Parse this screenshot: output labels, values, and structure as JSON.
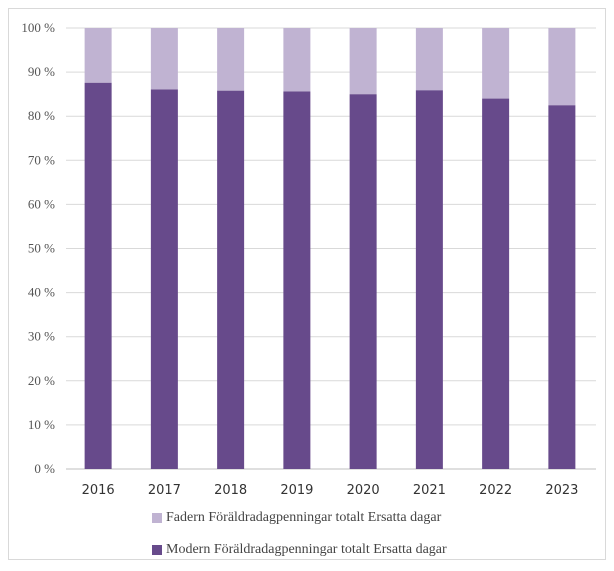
{
  "chart_data": {
    "type": "bar",
    "stacked": true,
    "categories": [
      "2016",
      "2017",
      "2018",
      "2019",
      "2020",
      "2021",
      "2022",
      "2023"
    ],
    "series": [
      {
        "name": "Modern Föräldradagpenningar totalt Ersatta dagar",
        "color": "#674a8b",
        "values": [
          87.6,
          86.1,
          85.8,
          85.6,
          85.0,
          85.9,
          84.0,
          82.5
        ]
      },
      {
        "name": "Fadern Föräldradagpenningar totalt Ersatta dagar",
        "color": "#c0b3d2",
        "values": [
          12.4,
          13.9,
          14.2,
          14.4,
          15.0,
          14.1,
          16.0,
          17.5
        ]
      }
    ],
    "ylim": [
      0,
      100
    ],
    "yticks": [
      0,
      10,
      20,
      30,
      40,
      50,
      60,
      70,
      80,
      90,
      100
    ],
    "ytick_labels": [
      "0 %",
      "10 %",
      "20 %",
      "30 %",
      "40 %",
      "50 %",
      "60 %",
      "70 %",
      "80 %",
      "90 %",
      "100 %"
    ],
    "grid": true,
    "legend_position": "bottom",
    "legend_order": [
      1,
      0
    ]
  }
}
